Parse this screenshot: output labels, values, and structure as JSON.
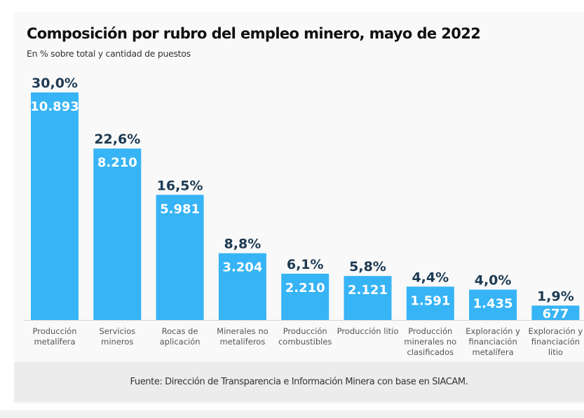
{
  "chart_data": {
    "type": "bar",
    "title": "Composición por rubro del empleo minero, mayo de 2022",
    "subtitle": "En % sobre total y cantidad de puestos",
    "xlabel": "",
    "ylabel": "",
    "ylim": [
      0,
      30
    ],
    "grid": false,
    "legend": "none",
    "categories": [
      [
        "Producción",
        "metalífera"
      ],
      [
        "Servicios",
        "mineros"
      ],
      [
        "Rocas de",
        "aplicación"
      ],
      [
        "Minerales no",
        "metalíferos"
      ],
      [
        "Producción",
        "combustibles"
      ],
      [
        "Producción litio"
      ],
      [
        "Producción",
        "minerales no",
        "clasificados"
      ],
      [
        "Exploración y",
        "financiación",
        "metalífera"
      ],
      [
        "Exploración y",
        "financiación",
        "litio"
      ]
    ],
    "values": [
      30.0,
      22.6,
      16.5,
      8.8,
      6.1,
      5.8,
      4.4,
      4.0,
      1.9
    ],
    "percent_labels": [
      "30,0%",
      "22,6%",
      "16,5%",
      "8,8%",
      "6,1%",
      "5,8%",
      "4,4%",
      "4,0%",
      "1,9%"
    ],
    "counts": [
      10893,
      8210,
      5981,
      3204,
      2210,
      2121,
      1591,
      1435,
      677
    ],
    "count_labels": [
      "10.893",
      "8.210",
      "5.981",
      "3.204",
      "2.210",
      "2.121",
      "1.591",
      "1.435",
      "677"
    ],
    "bar_color": "#37b4f5",
    "source": "Fuente: Dirección de Transparencia e Información Minera con base en SIACAM."
  }
}
